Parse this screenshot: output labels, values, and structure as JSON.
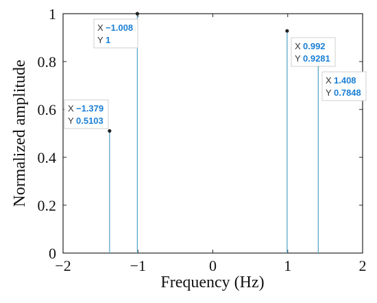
{
  "chart_data": {
    "type": "stem",
    "xlabel": "Frequency (Hz)",
    "ylabel": "Normalized amplitude",
    "xlim": [
      -2,
      2
    ],
    "ylim": [
      0,
      1
    ],
    "xticks": [
      -2,
      -1,
      0,
      1,
      2
    ],
    "xtick_labels": [
      "−2",
      "−1",
      "0",
      "1",
      "2"
    ],
    "yticks": [
      0,
      0.2,
      0.4,
      0.6,
      0.8,
      1
    ],
    "ytick_labels": [
      "0",
      "0.2",
      "0.4",
      "0.6",
      "0.8",
      "1"
    ],
    "grid": false,
    "stem_color": "#5aa7c9",
    "marker_color": "#222222",
    "points": [
      {
        "x": -1.379,
        "y": 0.5103
      },
      {
        "x": -1.008,
        "y": 1
      },
      {
        "x": 0.992,
        "y": 0.9281
      },
      {
        "x": 1.408,
        "y": 0.7848
      }
    ],
    "datatips": [
      {
        "x_key": "X",
        "y_key": "Y",
        "x_text": "−1.379",
        "y_text": "0.5103"
      },
      {
        "x_key": "X",
        "y_key": "Y",
        "x_text": "−1.008",
        "y_text": "1"
      },
      {
        "x_key": "X",
        "y_key": "Y",
        "x_text": "0.992",
        "y_text": "0.9281"
      },
      {
        "x_key": "X",
        "y_key": "Y",
        "x_text": "1.408",
        "y_text": "0.7848"
      }
    ]
  }
}
